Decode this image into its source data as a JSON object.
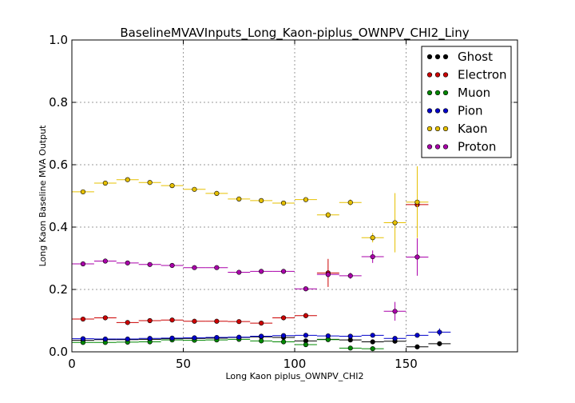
{
  "chart_data": {
    "type": "scatter",
    "title": "BaselineMVAVInputs_Long_Kaon-piplus_OWNPV_CHI2_Liny",
    "xlabel": "Long Kaon piplus_OWNPV_CHI2",
    "ylabel": "Long Kaon Baseline MVA Output",
    "xlim": [
      0,
      200
    ],
    "ylim": [
      0,
      1.0
    ],
    "x_ticks": [
      0,
      50,
      100,
      150
    ],
    "x_tick_labels": [
      "0",
      "50",
      "100",
      "150"
    ],
    "y_ticks": [
      0.0,
      0.2,
      0.4,
      0.6,
      0.8,
      1.0
    ],
    "y_tick_labels": [
      "0.0",
      "0.2",
      "0.4",
      "0.6",
      "0.8",
      "1.0"
    ],
    "grid": true,
    "legend_position": "top-right",
    "x_bin_half_width": 5,
    "series": [
      {
        "name": "Ghost",
        "color": "#000000",
        "points": [
          {
            "x": 5,
            "y": 0.037,
            "err": 0.003
          },
          {
            "x": 15,
            "y": 0.039,
            "err": 0.003
          },
          {
            "x": 25,
            "y": 0.039,
            "err": 0.003
          },
          {
            "x": 35,
            "y": 0.04,
            "err": 0.003
          },
          {
            "x": 45,
            "y": 0.042,
            "err": 0.003
          },
          {
            "x": 55,
            "y": 0.043,
            "err": 0.003
          },
          {
            "x": 65,
            "y": 0.044,
            "err": 0.003
          },
          {
            "x": 75,
            "y": 0.046,
            "err": 0.004
          },
          {
            "x": 85,
            "y": 0.048,
            "err": 0.004
          },
          {
            "x": 95,
            "y": 0.046,
            "err": 0.004
          },
          {
            "x": 105,
            "y": 0.035,
            "err": 0.005
          },
          {
            "x": 115,
            "y": 0.04,
            "err": 0.005
          },
          {
            "x": 125,
            "y": 0.038,
            "err": 0.005
          },
          {
            "x": 135,
            "y": 0.032,
            "err": 0.006
          },
          {
            "x": 145,
            "y": 0.034,
            "err": 0.006
          },
          {
            "x": 155,
            "y": 0.016,
            "err": 0.004
          },
          {
            "x": 165,
            "y": 0.026,
            "err": 0.004
          }
        ]
      },
      {
        "name": "Electron",
        "color": "#cc0000",
        "points": [
          {
            "x": 5,
            "y": 0.105,
            "err": 0.004
          },
          {
            "x": 15,
            "y": 0.109,
            "err": 0.004
          },
          {
            "x": 25,
            "y": 0.094,
            "err": 0.004
          },
          {
            "x": 35,
            "y": 0.1,
            "err": 0.004
          },
          {
            "x": 45,
            "y": 0.102,
            "err": 0.004
          },
          {
            "x": 55,
            "y": 0.098,
            "err": 0.004
          },
          {
            "x": 65,
            "y": 0.098,
            "err": 0.004
          },
          {
            "x": 75,
            "y": 0.097,
            "err": 0.004
          },
          {
            "x": 85,
            "y": 0.092,
            "err": 0.005
          },
          {
            "x": 95,
            "y": 0.109,
            "err": 0.006
          },
          {
            "x": 105,
            "y": 0.116,
            "err": 0.008
          },
          {
            "x": 115,
            "y": 0.253,
            "err": 0.045
          },
          {
            "x": 155,
            "y": 0.472,
            "err": 0.01
          }
        ]
      },
      {
        "name": "Muon",
        "color": "#008800",
        "points": [
          {
            "x": 5,
            "y": 0.03,
            "err": 0.003
          },
          {
            "x": 15,
            "y": 0.03,
            "err": 0.003
          },
          {
            "x": 25,
            "y": 0.031,
            "err": 0.003
          },
          {
            "x": 35,
            "y": 0.032,
            "err": 0.003
          },
          {
            "x": 45,
            "y": 0.038,
            "err": 0.003
          },
          {
            "x": 55,
            "y": 0.037,
            "err": 0.003
          },
          {
            "x": 65,
            "y": 0.038,
            "err": 0.003
          },
          {
            "x": 75,
            "y": 0.04,
            "err": 0.003
          },
          {
            "x": 85,
            "y": 0.035,
            "err": 0.004
          },
          {
            "x": 95,
            "y": 0.032,
            "err": 0.004
          },
          {
            "x": 105,
            "y": 0.023,
            "err": 0.005
          },
          {
            "x": 115,
            "y": 0.039,
            "err": 0.006
          },
          {
            "x": 125,
            "y": 0.012,
            "err": 0.004
          },
          {
            "x": 135,
            "y": 0.01,
            "err": 0.004
          }
        ]
      },
      {
        "name": "Pion",
        "color": "#0000cc",
        "points": [
          {
            "x": 5,
            "y": 0.042,
            "err": 0.003
          },
          {
            "x": 15,
            "y": 0.041,
            "err": 0.003
          },
          {
            "x": 25,
            "y": 0.041,
            "err": 0.003
          },
          {
            "x": 35,
            "y": 0.043,
            "err": 0.003
          },
          {
            "x": 45,
            "y": 0.044,
            "err": 0.003
          },
          {
            "x": 55,
            "y": 0.045,
            "err": 0.003
          },
          {
            "x": 65,
            "y": 0.046,
            "err": 0.003
          },
          {
            "x": 75,
            "y": 0.047,
            "err": 0.003
          },
          {
            "x": 85,
            "y": 0.05,
            "err": 0.004
          },
          {
            "x": 95,
            "y": 0.052,
            "err": 0.004
          },
          {
            "x": 105,
            "y": 0.053,
            "err": 0.004
          },
          {
            "x": 115,
            "y": 0.051,
            "err": 0.004
          },
          {
            "x": 125,
            "y": 0.05,
            "err": 0.005
          },
          {
            "x": 135,
            "y": 0.053,
            "err": 0.005
          },
          {
            "x": 145,
            "y": 0.043,
            "err": 0.005
          },
          {
            "x": 155,
            "y": 0.053,
            "err": 0.006
          },
          {
            "x": 165,
            "y": 0.063,
            "err": 0.012
          }
        ]
      },
      {
        "name": "Kaon",
        "color": "#e6c000",
        "points": [
          {
            "x": 5,
            "y": 0.513,
            "err": 0.004
          },
          {
            "x": 15,
            "y": 0.541,
            "err": 0.004
          },
          {
            "x": 25,
            "y": 0.552,
            "err": 0.004
          },
          {
            "x": 35,
            "y": 0.543,
            "err": 0.004
          },
          {
            "x": 45,
            "y": 0.533,
            "err": 0.004
          },
          {
            "x": 55,
            "y": 0.521,
            "err": 0.004
          },
          {
            "x": 65,
            "y": 0.508,
            "err": 0.004
          },
          {
            "x": 75,
            "y": 0.49,
            "err": 0.005
          },
          {
            "x": 85,
            "y": 0.485,
            "err": 0.005
          },
          {
            "x": 95,
            "y": 0.477,
            "err": 0.006
          },
          {
            "x": 105,
            "y": 0.488,
            "err": 0.007
          },
          {
            "x": 115,
            "y": 0.439,
            "err": 0.01
          },
          {
            "x": 125,
            "y": 0.479,
            "err": 0.01
          },
          {
            "x": 135,
            "y": 0.366,
            "err": 0.015
          },
          {
            "x": 145,
            "y": 0.414,
            "err": 0.095
          },
          {
            "x": 155,
            "y": 0.48,
            "err": 0.115
          }
        ]
      },
      {
        "name": "Proton",
        "color": "#aa00aa",
        "points": [
          {
            "x": 5,
            "y": 0.282,
            "err": 0.004
          },
          {
            "x": 15,
            "y": 0.291,
            "err": 0.004
          },
          {
            "x": 25,
            "y": 0.285,
            "err": 0.004
          },
          {
            "x": 35,
            "y": 0.28,
            "err": 0.004
          },
          {
            "x": 45,
            "y": 0.277,
            "err": 0.004
          },
          {
            "x": 55,
            "y": 0.27,
            "err": 0.004
          },
          {
            "x": 65,
            "y": 0.27,
            "err": 0.004
          },
          {
            "x": 75,
            "y": 0.255,
            "err": 0.004
          },
          {
            "x": 85,
            "y": 0.258,
            "err": 0.005
          },
          {
            "x": 95,
            "y": 0.258,
            "err": 0.006
          },
          {
            "x": 105,
            "y": 0.202,
            "err": 0.006
          },
          {
            "x": 115,
            "y": 0.248,
            "err": 0.01
          },
          {
            "x": 125,
            "y": 0.244,
            "err": 0.01
          },
          {
            "x": 135,
            "y": 0.305,
            "err": 0.02
          },
          {
            "x": 145,
            "y": 0.13,
            "err": 0.03
          },
          {
            "x": 155,
            "y": 0.304,
            "err": 0.06
          }
        ]
      }
    ]
  }
}
